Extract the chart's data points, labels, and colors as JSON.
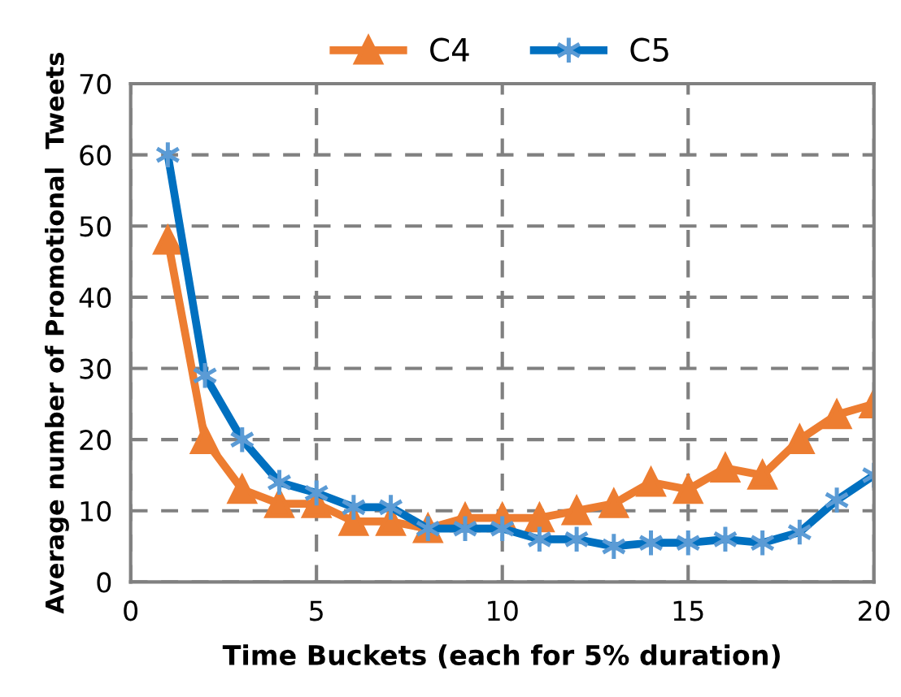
{
  "chart_data": {
    "type": "line",
    "xlabel": "Time Buckets (each for 5% duration)",
    "ylabel": "Average number of Promotional  Tweets",
    "x": [
      1,
      2,
      3,
      4,
      5,
      6,
      7,
      8,
      9,
      10,
      11,
      12,
      13,
      14,
      15,
      16,
      17,
      18,
      19,
      20
    ],
    "series": [
      {
        "name": "C4",
        "color": "#ed7d31",
        "marker": "triangle",
        "values": [
          48,
          20,
          13,
          11,
          11,
          8.5,
          8.5,
          7.5,
          9,
          9,
          9,
          10,
          11,
          14,
          13,
          16,
          15,
          20,
          23.5,
          25
        ]
      },
      {
        "name": "C5",
        "color": "#0070c0",
        "marker": "cross",
        "values": [
          60,
          29,
          20,
          14,
          12.5,
          10.5,
          10.5,
          7.5,
          7.5,
          7.5,
          6,
          6,
          5,
          5.5,
          5.5,
          6,
          5.5,
          7,
          11.5,
          15
        ]
      }
    ],
    "xlim": [
      0,
      20
    ],
    "xticks": [
      0,
      5,
      10,
      15,
      20
    ],
    "ylim": [
      0,
      70
    ],
    "yticks": [
      0,
      10,
      20,
      30,
      40,
      50,
      60,
      70
    ],
    "grid": true,
    "legend": "top",
    "line_style": "solid"
  }
}
